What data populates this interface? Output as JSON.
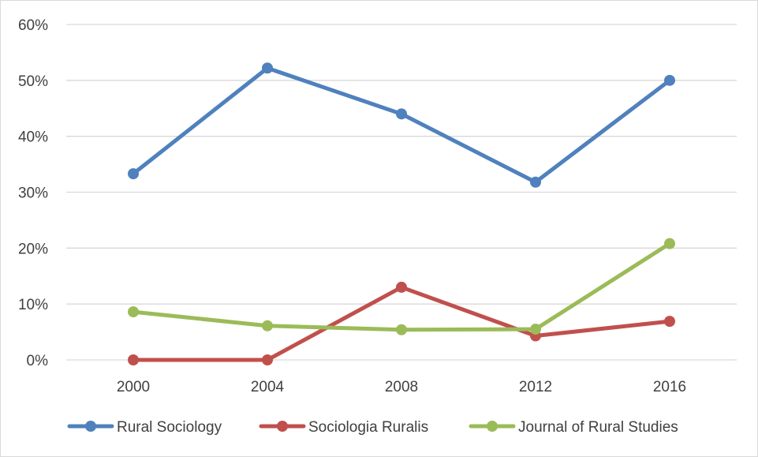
{
  "chart_data": {
    "type": "line",
    "title": "",
    "xlabel": "",
    "ylabel": "",
    "x": [
      "2000",
      "2004",
      "2008",
      "2012",
      "2016"
    ],
    "ylim": [
      0,
      60
    ],
    "yticks": [
      0,
      10,
      20,
      30,
      40,
      50,
      60
    ],
    "ytick_labels": [
      "0%",
      "10%",
      "20%",
      "30%",
      "40%",
      "50%",
      "60%"
    ],
    "grid": true,
    "legend_position": "bottom",
    "series": [
      {
        "name": "Rural Sociology",
        "color": "#4f81bd",
        "values": [
          33.3,
          52.2,
          44.0,
          31.8,
          50.0
        ]
      },
      {
        "name": "Sociologia Ruralis",
        "color": "#c0504d",
        "values": [
          0.0,
          0.0,
          13.0,
          4.3,
          6.9
        ]
      },
      {
        "name": "Journal of Rural Studies",
        "color": "#9bbb59",
        "values": [
          8.6,
          6.1,
          5.4,
          5.5,
          20.8
        ]
      }
    ]
  }
}
